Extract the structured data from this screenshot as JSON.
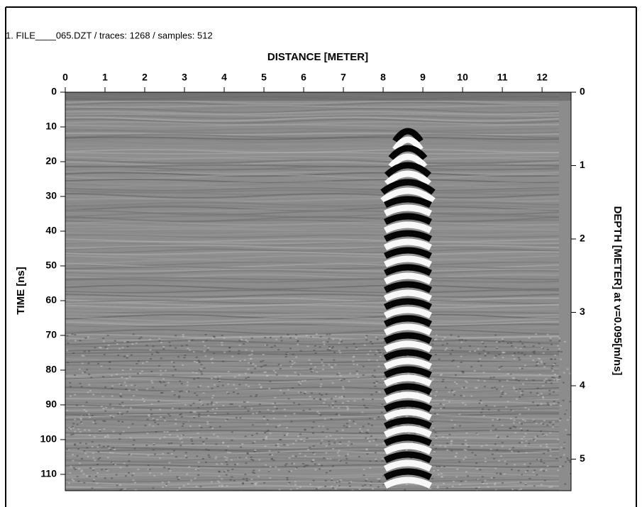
{
  "chart_data": {
    "type": "radargram",
    "title": "1. FILE____065.DZT / traces: 1268 / samples: 512",
    "xlabel": "DISTANCE [METER]",
    "ylabel": "TIME [ns]",
    "y2label": "DEPTH [METER] at v=0.095[m/ns]",
    "xlim": [
      0,
      12.73
    ],
    "xticks": [
      0,
      1,
      2,
      3,
      4,
      5,
      6,
      7,
      8,
      9,
      10,
      11,
      12
    ],
    "ylim": [
      0,
      114.7
    ],
    "yticks": [
      0,
      10,
      20,
      30,
      40,
      50,
      60,
      70,
      80,
      90,
      100,
      110
    ],
    "y2lim": [
      0,
      5.43
    ],
    "y2ticks": [
      0,
      1,
      2,
      3,
      4,
      5
    ]
  }
}
